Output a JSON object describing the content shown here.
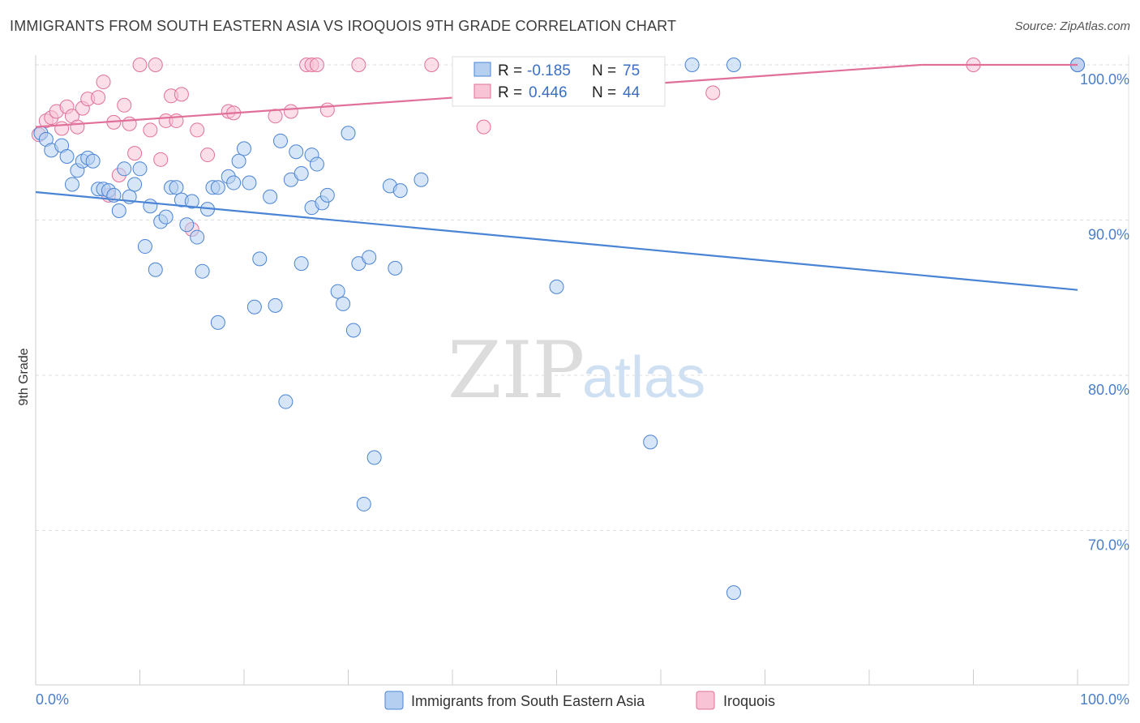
{
  "title": "IMMIGRANTS FROM SOUTH EASTERN ASIA VS IROQUOIS 9TH GRADE CORRELATION CHART",
  "source": "Source: ZipAtlas.com",
  "watermark": {
    "zip": "ZIP",
    "atlas": "atlas"
  },
  "colors": {
    "blue": "#4a84d4",
    "blue_fill": "#b5cff0",
    "pink": "#e0709a",
    "pink_fill": "#f7c3d5",
    "axis_text": "#4a7ec9",
    "grid": "#dedede"
  },
  "stats": {
    "r_label": "R =",
    "n_label": "N =",
    "blue": {
      "r": "-0.185",
      "n": "75"
    },
    "pink": {
      "r": "0.446",
      "n": "44"
    }
  },
  "chart_data": {
    "type": "scatter",
    "title": "IMMIGRANTS FROM SOUTH EASTERN ASIA VS IROQUOIS 9TH GRADE CORRELATION CHART",
    "xlabel": "",
    "ylabel": "9th Grade",
    "xlim": [
      0,
      100
    ],
    "ylim": [
      61,
      101
    ],
    "x_tick_labels": [
      "0.0%",
      "100.0%"
    ],
    "y_ticks": [
      70,
      80,
      90,
      100
    ],
    "y_tick_labels": [
      "70.0%",
      "80.0%",
      "90.0%",
      "100.0%"
    ],
    "grid": "horizontal dashed",
    "legend_position": "bottom-center",
    "series": [
      {
        "name": "Immigrants from South Eastern Asia",
        "color": "#4a84d4",
        "trend": {
          "x": [
            0,
            100
          ],
          "y": [
            91.8,
            85.5
          ]
        },
        "points": [
          [
            0.5,
            95.6
          ],
          [
            1,
            95.2
          ],
          [
            1.5,
            94.5
          ],
          [
            2.5,
            94.8
          ],
          [
            3,
            94.1
          ],
          [
            3.5,
            92.3
          ],
          [
            4,
            93.2
          ],
          [
            4.5,
            93.8
          ],
          [
            5,
            94.0
          ],
          [
            5.5,
            93.8
          ],
          [
            6,
            92.0
          ],
          [
            6.5,
            92.0
          ],
          [
            7,
            91.9
          ],
          [
            7.5,
            91.6
          ],
          [
            8,
            90.6
          ],
          [
            8.5,
            93.3
          ],
          [
            9,
            91.5
          ],
          [
            9.5,
            92.3
          ],
          [
            10,
            93.3
          ],
          [
            10.5,
            88.3
          ],
          [
            11,
            90.9
          ],
          [
            11.5,
            86.8
          ],
          [
            12,
            89.9
          ],
          [
            12.5,
            90.2
          ],
          [
            13,
            92.1
          ],
          [
            13.5,
            92.1
          ],
          [
            14,
            91.3
          ],
          [
            14.5,
            89.7
          ],
          [
            15,
            91.2
          ],
          [
            15.5,
            88.9
          ],
          [
            16,
            86.7
          ],
          [
            16.5,
            90.7
          ],
          [
            17,
            92.1
          ],
          [
            17.5,
            92.1
          ],
          [
            17.5,
            83.4
          ],
          [
            18.5,
            92.8
          ],
          [
            19,
            92.4
          ],
          [
            19.5,
            93.8
          ],
          [
            20,
            94.6
          ],
          [
            20.5,
            92.4
          ],
          [
            21,
            84.4
          ],
          [
            21.5,
            87.5
          ],
          [
            22.5,
            91.5
          ],
          [
            23,
            84.5
          ],
          [
            23.5,
            95.1
          ],
          [
            24,
            78.3
          ],
          [
            24.5,
            92.6
          ],
          [
            25,
            94.4
          ],
          [
            25.5,
            87.2
          ],
          [
            25.5,
            93.0
          ],
          [
            26.5,
            90.8
          ],
          [
            26.5,
            94.2
          ],
          [
            27,
            93.6
          ],
          [
            27.5,
            91.1
          ],
          [
            28,
            91.6
          ],
          [
            29,
            85.4
          ],
          [
            29.5,
            84.6
          ],
          [
            30,
            95.6
          ],
          [
            30.5,
            82.9
          ],
          [
            31,
            87.2
          ],
          [
            31.5,
            71.7
          ],
          [
            32,
            87.6
          ],
          [
            32.5,
            74.7
          ],
          [
            34,
            92.2
          ],
          [
            34.5,
            86.9
          ],
          [
            35,
            91.9
          ],
          [
            37,
            92.6
          ],
          [
            43,
            100.0
          ],
          [
            50,
            85.7
          ],
          [
            59,
            75.7
          ],
          [
            63,
            100.0
          ],
          [
            67,
            66.0
          ],
          [
            67,
            100.0
          ],
          [
            100,
            100.0
          ],
          [
            100,
            100.0
          ]
        ]
      },
      {
        "name": "Iroquois",
        "color": "#e0709a",
        "trend": {
          "x": [
            0,
            85
          ],
          "y": [
            96.0,
            100.0
          ]
        },
        "points": [
          [
            0.3,
            95.5
          ],
          [
            1,
            96.4
          ],
          [
            1.5,
            96.6
          ],
          [
            2,
            97.0
          ],
          [
            2.5,
            95.9
          ],
          [
            3,
            97.3
          ],
          [
            3.5,
            96.7
          ],
          [
            4,
            96.0
          ],
          [
            4.5,
            97.2
          ],
          [
            5,
            97.8
          ],
          [
            6,
            97.9
          ],
          [
            6.5,
            98.9
          ],
          [
            7,
            91.6
          ],
          [
            7.5,
            96.3
          ],
          [
            8,
            92.9
          ],
          [
            8.5,
            97.4
          ],
          [
            9,
            96.2
          ],
          [
            9.5,
            94.3
          ],
          [
            10,
            100.0
          ],
          [
            11,
            95.8
          ],
          [
            11.5,
            100.0
          ],
          [
            12,
            93.9
          ],
          [
            12.5,
            96.4
          ],
          [
            13,
            98.0
          ],
          [
            13.5,
            96.4
          ],
          [
            14,
            98.1
          ],
          [
            15,
            89.4
          ],
          [
            15.5,
            95.8
          ],
          [
            16.5,
            94.2
          ],
          [
            18.5,
            97.0
          ],
          [
            19,
            96.9
          ],
          [
            23,
            96.7
          ],
          [
            24.5,
            97.0
          ],
          [
            26,
            100.0
          ],
          [
            26.5,
            100.0
          ],
          [
            27,
            100.0
          ],
          [
            28,
            97.1
          ],
          [
            31,
            100.0
          ],
          [
            38,
            100.0
          ],
          [
            43,
            96.0
          ],
          [
            56,
            100.0
          ],
          [
            65,
            98.2
          ],
          [
            90,
            100.0
          ],
          [
            100,
            100.0
          ]
        ]
      }
    ]
  }
}
